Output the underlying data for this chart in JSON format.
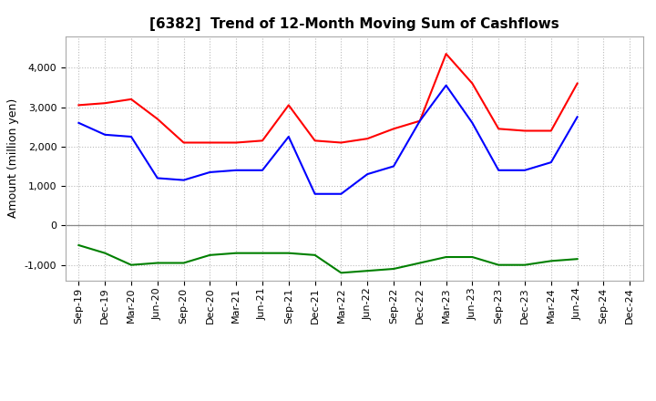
{
  "title": "[6382]  Trend of 12-Month Moving Sum of Cashflows",
  "ylabel": "Amount (million yen)",
  "x_labels": [
    "Sep-19",
    "Dec-19",
    "Mar-20",
    "Jun-20",
    "Sep-20",
    "Dec-20",
    "Mar-21",
    "Jun-21",
    "Sep-21",
    "Dec-21",
    "Mar-22",
    "Jun-22",
    "Sep-22",
    "Dec-22",
    "Mar-23",
    "Jun-23",
    "Sep-23",
    "Dec-23",
    "Mar-24",
    "Jun-24",
    "Sep-24",
    "Dec-24"
  ],
  "operating": [
    3050,
    3100,
    3200,
    2700,
    2100,
    2100,
    2100,
    2150,
    3050,
    2150,
    2100,
    2200,
    2450,
    2650,
    4350,
    3600,
    2450,
    2400,
    2400,
    3600,
    null,
    null
  ],
  "investing": [
    -500,
    -700,
    -1000,
    -950,
    -950,
    -750,
    -700,
    -700,
    -700,
    -750,
    -1200,
    -1150,
    -1100,
    -950,
    -800,
    -800,
    -1000,
    -1000,
    -900,
    -850,
    null,
    null
  ],
  "free": [
    2600,
    2300,
    2250,
    1200,
    1150,
    1350,
    1400,
    1400,
    2250,
    800,
    800,
    1300,
    1500,
    2650,
    3550,
    2600,
    1400,
    1400,
    1600,
    2750,
    null,
    null
  ],
  "operating_color": "#ff0000",
  "investing_color": "#008000",
  "free_color": "#0000ff",
  "ylim": [
    -1400,
    4800
  ],
  "yticks": [
    -1000,
    0,
    1000,
    2000,
    3000,
    4000
  ],
  "background_color": "#ffffff",
  "grid_color": "#bbbbbb",
  "title_fontsize": 11,
  "legend_fontsize": 9,
  "ylabel_fontsize": 9,
  "tick_fontsize": 8
}
